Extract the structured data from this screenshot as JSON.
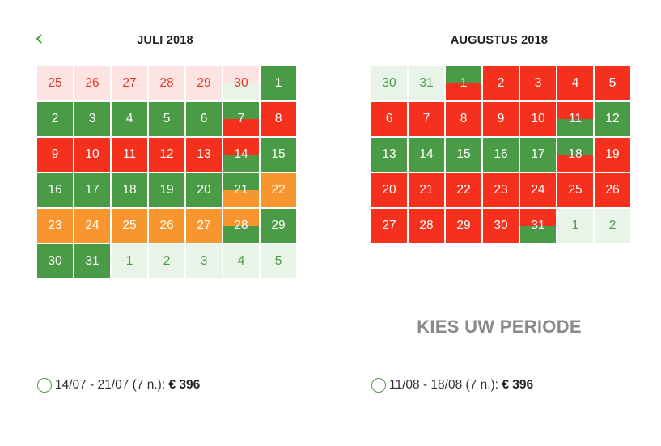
{
  "calendars": [
    {
      "title": "JULI 2018",
      "days": [
        {
          "n": "25",
          "s": "prev"
        },
        {
          "n": "26",
          "s": "prev"
        },
        {
          "n": "27",
          "s": "prev"
        },
        {
          "n": "28",
          "s": "prev"
        },
        {
          "n": "29",
          "s": "prev"
        },
        {
          "n": "30",
          "s": "prev-split"
        },
        {
          "n": "1",
          "s": "green"
        },
        {
          "n": "2",
          "s": "green"
        },
        {
          "n": "3",
          "s": "green"
        },
        {
          "n": "4",
          "s": "green"
        },
        {
          "n": "5",
          "s": "green"
        },
        {
          "n": "6",
          "s": "green"
        },
        {
          "n": "7",
          "s": "green-red"
        },
        {
          "n": "8",
          "s": "red"
        },
        {
          "n": "9",
          "s": "red"
        },
        {
          "n": "10",
          "s": "red"
        },
        {
          "n": "11",
          "s": "red"
        },
        {
          "n": "12",
          "s": "red"
        },
        {
          "n": "13",
          "s": "red"
        },
        {
          "n": "14",
          "s": "red-green"
        },
        {
          "n": "15",
          "s": "green"
        },
        {
          "n": "16",
          "s": "green"
        },
        {
          "n": "17",
          "s": "green"
        },
        {
          "n": "18",
          "s": "green"
        },
        {
          "n": "19",
          "s": "green"
        },
        {
          "n": "20",
          "s": "green"
        },
        {
          "n": "21",
          "s": "green-orange"
        },
        {
          "n": "22",
          "s": "orange"
        },
        {
          "n": "23",
          "s": "orange"
        },
        {
          "n": "24",
          "s": "orange"
        },
        {
          "n": "25",
          "s": "orange"
        },
        {
          "n": "26",
          "s": "orange"
        },
        {
          "n": "27",
          "s": "orange"
        },
        {
          "n": "28",
          "s": "orange-green"
        },
        {
          "n": "29",
          "s": "green"
        },
        {
          "n": "30",
          "s": "green"
        },
        {
          "n": "31",
          "s": "green"
        },
        {
          "n": "1",
          "s": "next"
        },
        {
          "n": "2",
          "s": "next"
        },
        {
          "n": "3",
          "s": "next"
        },
        {
          "n": "4",
          "s": "next"
        },
        {
          "n": "5",
          "s": "next"
        }
      ]
    },
    {
      "title": "AUGUSTUS 2018",
      "days": [
        {
          "n": "30",
          "s": "next"
        },
        {
          "n": "31",
          "s": "next"
        },
        {
          "n": "1",
          "s": "green-red"
        },
        {
          "n": "2",
          "s": "red"
        },
        {
          "n": "3",
          "s": "red"
        },
        {
          "n": "4",
          "s": "red"
        },
        {
          "n": "5",
          "s": "red"
        },
        {
          "n": "6",
          "s": "red"
        },
        {
          "n": "7",
          "s": "red"
        },
        {
          "n": "8",
          "s": "red"
        },
        {
          "n": "9",
          "s": "red"
        },
        {
          "n": "10",
          "s": "red"
        },
        {
          "n": "11",
          "s": "red-green"
        },
        {
          "n": "12",
          "s": "green"
        },
        {
          "n": "13",
          "s": "green"
        },
        {
          "n": "14",
          "s": "green"
        },
        {
          "n": "15",
          "s": "green"
        },
        {
          "n": "16",
          "s": "green"
        },
        {
          "n": "17",
          "s": "green"
        },
        {
          "n": "18",
          "s": "green-red"
        },
        {
          "n": "19",
          "s": "red"
        },
        {
          "n": "20",
          "s": "red"
        },
        {
          "n": "21",
          "s": "red"
        },
        {
          "n": "22",
          "s": "red"
        },
        {
          "n": "23",
          "s": "red"
        },
        {
          "n": "24",
          "s": "red"
        },
        {
          "n": "25",
          "s": "red"
        },
        {
          "n": "26",
          "s": "red"
        },
        {
          "n": "27",
          "s": "red"
        },
        {
          "n": "28",
          "s": "red"
        },
        {
          "n": "29",
          "s": "red"
        },
        {
          "n": "30",
          "s": "red"
        },
        {
          "n": "31",
          "s": "red-green"
        },
        {
          "n": "1",
          "s": "next"
        },
        {
          "n": "2",
          "s": "next"
        }
      ]
    }
  ],
  "cta": "KIES UW PERIODE",
  "options": [
    {
      "period": "14/07 - 21/07 (7 n.):",
      "price": "€ 396"
    },
    {
      "period": "11/08 - 18/08 (7 n.):",
      "price": "€ 396"
    }
  ],
  "colors": {
    "available": "#4a9b45",
    "unavailable": "#f5311e",
    "limited": "#f7952e"
  },
  "icons": {
    "prev": "chevron-left-icon",
    "option": "radio-circle-icon"
  }
}
